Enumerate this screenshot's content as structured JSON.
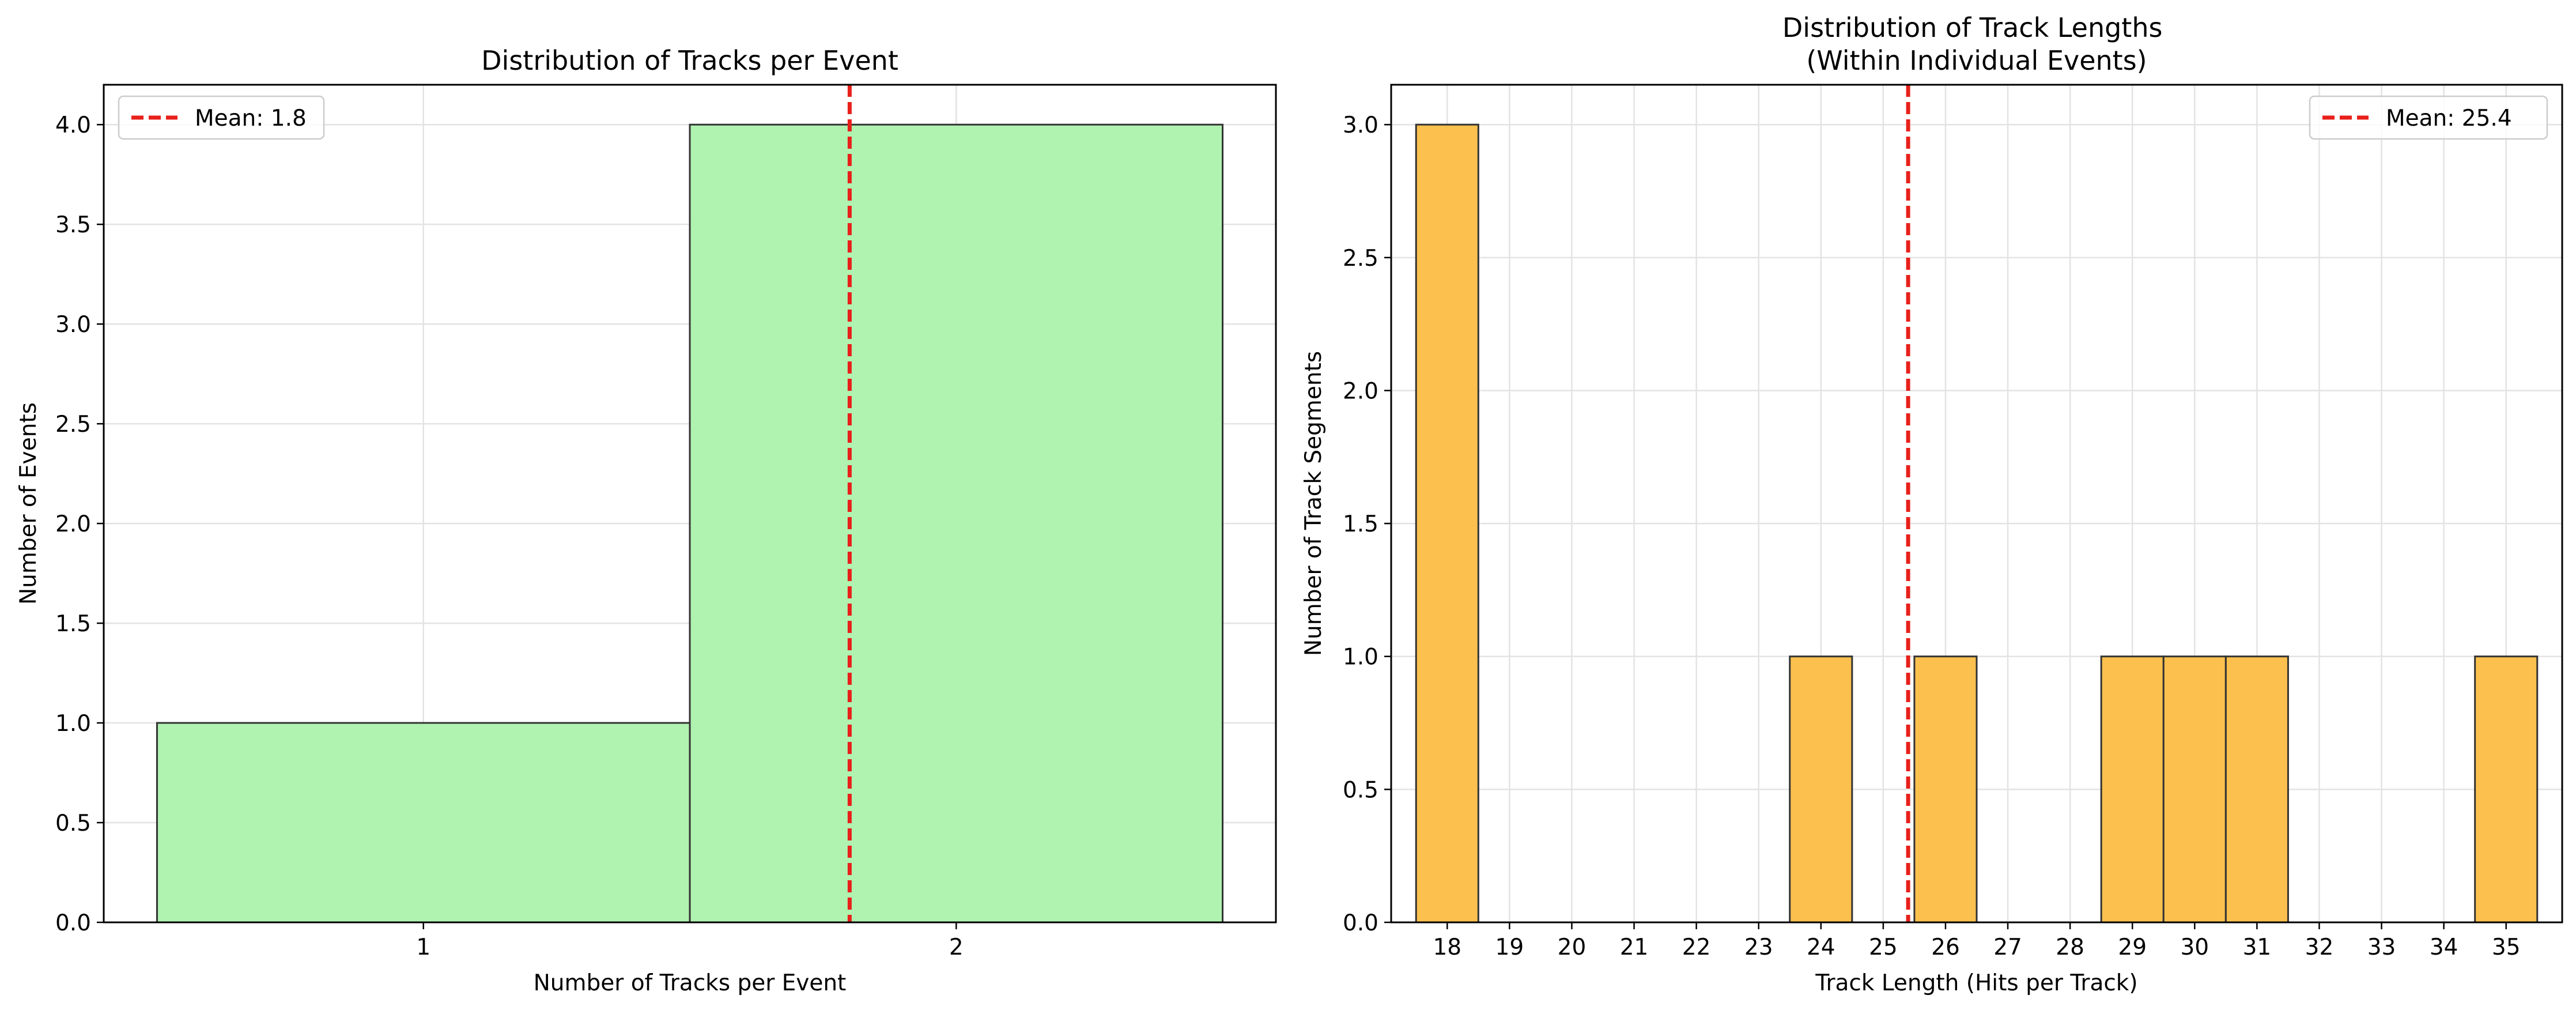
{
  "chart_data": [
    {
      "type": "bar",
      "title": "Distribution of Tracks per Event",
      "xlabel": "Number of Tracks per Event",
      "ylabel": "Number of Events",
      "categories": [
        "1",
        "2"
      ],
      "values": [
        1,
        4
      ],
      "xlim": [
        0.4,
        2.6
      ],
      "ylim": [
        0,
        4.2
      ],
      "yticks": [
        0.0,
        0.5,
        1.0,
        1.5,
        2.0,
        2.5,
        3.0,
        3.5,
        4.0
      ],
      "ytick_labels": [
        "0.0",
        "0.5",
        "1.0",
        "1.5",
        "2.0",
        "2.5",
        "3.0",
        "3.5",
        "4.0"
      ],
      "grid": true,
      "bar_color": "#b0f2b0",
      "mean_line": {
        "value": 1.8,
        "label": "Mean: 1.8",
        "color": "#e8201b"
      },
      "legend_position": "upper-left"
    },
    {
      "type": "bar",
      "title": "Distribution of Track Lengths\n(Within Individual Events)",
      "title_lines": [
        "Distribution of Track Lengths",
        "(Within Individual Events)"
      ],
      "xlabel": "Track Length (Hits per Track)",
      "ylabel": "Number of Track Segments",
      "categories": [
        "18",
        "19",
        "20",
        "21",
        "22",
        "23",
        "24",
        "25",
        "26",
        "27",
        "28",
        "29",
        "30",
        "31",
        "32",
        "33",
        "34",
        "35"
      ],
      "values": [
        3,
        0,
        0,
        0,
        0,
        0,
        1,
        0,
        1,
        0,
        0,
        1,
        1,
        1,
        0,
        0,
        0,
        1
      ],
      "xlim": [
        17.1,
        35.9
      ],
      "ylim": [
        0,
        3.15
      ],
      "yticks": [
        0.0,
        0.5,
        1.0,
        1.5,
        2.0,
        2.5,
        3.0
      ],
      "ytick_labels": [
        "0.0",
        "0.5",
        "1.0",
        "1.5",
        "2.0",
        "2.5",
        "3.0"
      ],
      "grid": true,
      "bar_color": "#fcc04e",
      "mean_line": {
        "value": 25.4,
        "label": "Mean: 25.4",
        "color": "#e8201b"
      },
      "legend_position": "upper-right"
    }
  ]
}
